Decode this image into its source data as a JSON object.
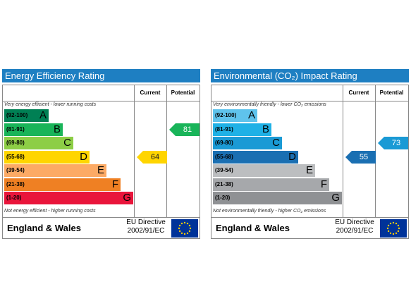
{
  "panels": [
    {
      "title": "Energy Efficiency Rating",
      "current_header": "Current",
      "potential_header": "Potential",
      "top_note": "Very energy efficient - lower running costs",
      "bottom_note": "Not energy efficient - higher running costs",
      "bands": [
        {
          "range": "(92-100)",
          "letter": "A",
          "color": "#008054"
        },
        {
          "range": "(81-91)",
          "letter": "B",
          "color": "#19b459"
        },
        {
          "range": "(69-80)",
          "letter": "C",
          "color": "#8dce46"
        },
        {
          "range": "(55-68)",
          "letter": "D",
          "color": "#ffd500"
        },
        {
          "range": "(39-54)",
          "letter": "E",
          "color": "#fcaa65"
        },
        {
          "range": "(21-38)",
          "letter": "F",
          "color": "#ef8023"
        },
        {
          "range": "(1-20)",
          "letter": "G",
          "color": "#e9153b"
        }
      ],
      "current": 64,
      "potential": 81,
      "footer": {
        "region": "England & Wales",
        "directive_line1": "EU Directive",
        "directive_line2": "2002/91/EC"
      }
    },
    {
      "title": "Environmental (CO₂) Impact Rating",
      "current_header": "Current",
      "potential_header": "Potential",
      "top_note": "Very environmentally friendly - lower CO₂ emissions",
      "bottom_note": "Not environmentally friendly - higher CO₂ emissions",
      "bands": [
        {
          "range": "(92-100)",
          "letter": "A",
          "color": "#5fc3ec"
        },
        {
          "range": "(81-91)",
          "letter": "B",
          "color": "#1fb1e6"
        },
        {
          "range": "(69-80)",
          "letter": "C",
          "color": "#1a9ad5"
        },
        {
          "range": "(55-68)",
          "letter": "D",
          "color": "#1a6fb2"
        },
        {
          "range": "(39-54)",
          "letter": "E",
          "color": "#bcbec0"
        },
        {
          "range": "(21-38)",
          "letter": "F",
          "color": "#a6a8ab"
        },
        {
          "range": "(1-20)",
          "letter": "G",
          "color": "#8f9194"
        }
      ],
      "current": 55,
      "potential": 73,
      "footer": {
        "region": "England & Wales",
        "directive_line1": "EU Directive",
        "directive_line2": "2002/91/EC"
      }
    }
  ]
}
